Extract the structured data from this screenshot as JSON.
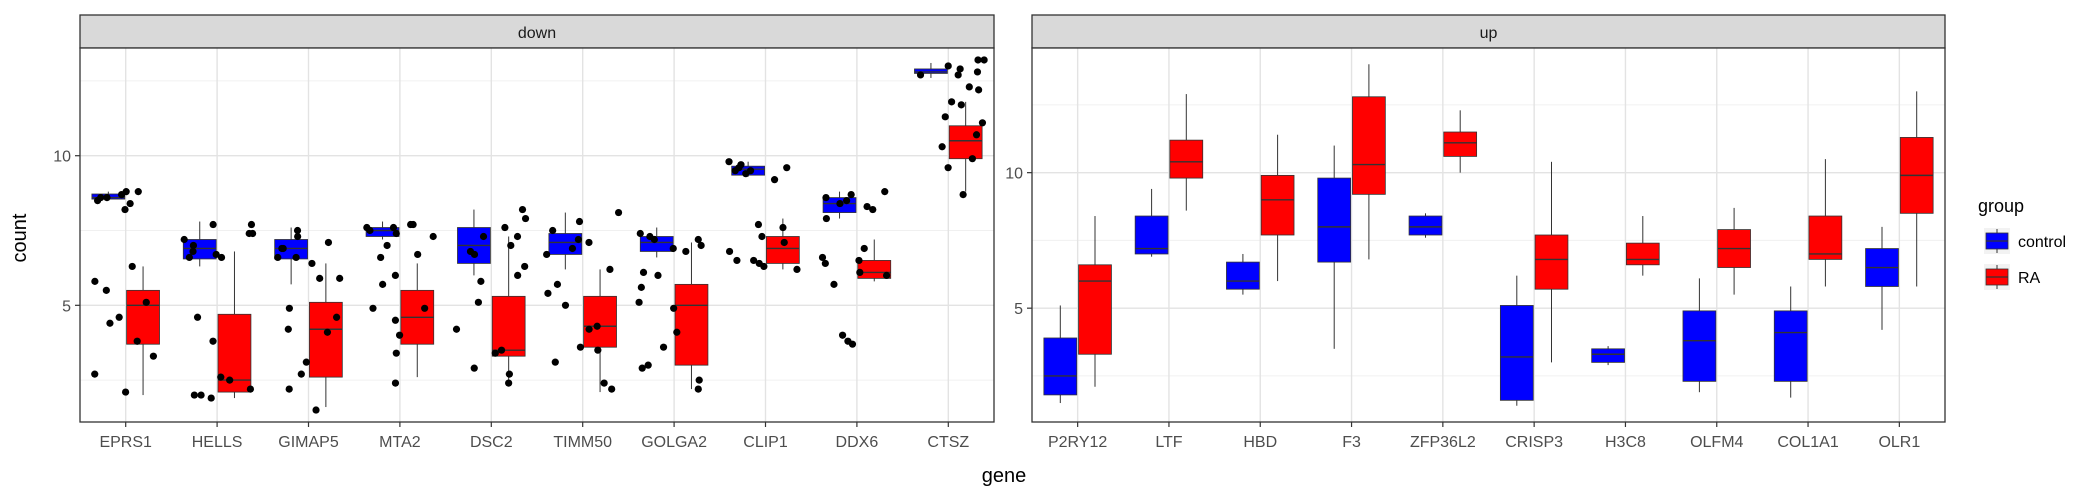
{
  "chart_data": {
    "type": "boxplot",
    "xlabel": "gene",
    "ylabel": "count",
    "legend": {
      "title": "group",
      "position": "right",
      "entries": [
        {
          "name": "control",
          "color": "#0000ff"
        },
        {
          "name": "RA",
          "color": "#ff0000"
        }
      ]
    },
    "grid": true,
    "facets": [
      {
        "title": "down",
        "ylim": [
          1.1,
          13.6
        ],
        "yticks": [
          5,
          10
        ],
        "genes": [
          "EPRS1",
          "HELLS",
          "GIMAP5",
          "MTA2",
          "DSC2",
          "TIMM50",
          "GOLGA2",
          "CLIP1",
          "DDX6",
          "CTSZ"
        ],
        "boxes": [
          {
            "gene": "EPRS1",
            "group": "control",
            "q1": 8.55,
            "median": 8.6,
            "q3": 8.72,
            "whisker_low": 8.5,
            "whisker_high": 8.8
          },
          {
            "gene": "EPRS1",
            "group": "RA",
            "q1": 3.7,
            "median": 5.0,
            "q3": 5.5,
            "whisker_low": 2.0,
            "whisker_high": 6.3
          },
          {
            "gene": "HELLS",
            "group": "control",
            "q1": 6.55,
            "median": 6.9,
            "q3": 7.2,
            "whisker_low": 6.3,
            "whisker_high": 7.8
          },
          {
            "gene": "HELLS",
            "group": "RA",
            "q1": 2.1,
            "median": 2.5,
            "q3": 4.7,
            "whisker_low": 1.9,
            "whisker_high": 6.8
          },
          {
            "gene": "GIMAP5",
            "group": "control",
            "q1": 6.55,
            "median": 6.9,
            "q3": 7.2,
            "whisker_low": 5.7,
            "whisker_high": 7.6
          },
          {
            "gene": "GIMAP5",
            "group": "RA",
            "q1": 2.6,
            "median": 4.2,
            "q3": 5.1,
            "whisker_low": 1.6,
            "whisker_high": 6.4
          },
          {
            "gene": "MTA2",
            "group": "control",
            "q1": 7.3,
            "median": 7.5,
            "q3": 7.6,
            "whisker_low": 7.2,
            "whisker_high": 7.8
          },
          {
            "gene": "MTA2",
            "group": "RA",
            "q1": 3.7,
            "median": 4.6,
            "q3": 5.5,
            "whisker_low": 2.6,
            "whisker_high": 6.4
          },
          {
            "gene": "DSC2",
            "group": "control",
            "q1": 6.4,
            "median": 7.0,
            "q3": 7.6,
            "whisker_low": 6.0,
            "whisker_high": 8.2
          },
          {
            "gene": "DSC2",
            "group": "RA",
            "q1": 3.3,
            "median": 3.5,
            "q3": 5.3,
            "whisker_low": 2.4,
            "whisker_high": 7.3
          },
          {
            "gene": "TIMM50",
            "group": "control",
            "q1": 6.7,
            "median": 7.1,
            "q3": 7.4,
            "whisker_low": 6.2,
            "whisker_high": 8.1
          },
          {
            "gene": "TIMM50",
            "group": "RA",
            "q1": 3.6,
            "median": 4.3,
            "q3": 5.3,
            "whisker_low": 2.1,
            "whisker_high": 6.2
          },
          {
            "gene": "GOLGA2",
            "group": "control",
            "q1": 6.8,
            "median": 7.1,
            "q3": 7.3,
            "whisker_low": 6.6,
            "whisker_high": 7.6
          },
          {
            "gene": "GOLGA2",
            "group": "RA",
            "q1": 3.0,
            "median": 5.0,
            "q3": 5.7,
            "whisker_low": 2.2,
            "whisker_high": 7.1
          },
          {
            "gene": "CLIP1",
            "group": "control",
            "q1": 9.35,
            "median": 9.55,
            "q3": 9.65,
            "whisker_low": 9.3,
            "whisker_high": 9.8
          },
          {
            "gene": "CLIP1",
            "group": "RA",
            "q1": 6.4,
            "median": 6.9,
            "q3": 7.3,
            "whisker_low": 6.2,
            "whisker_high": 7.9
          },
          {
            "gene": "DDX6",
            "group": "control",
            "q1": 8.1,
            "median": 8.4,
            "q3": 8.6,
            "whisker_low": 7.9,
            "whisker_high": 8.8
          },
          {
            "gene": "DDX6",
            "group": "RA",
            "q1": 5.9,
            "median": 6.1,
            "q3": 6.5,
            "whisker_low": 5.8,
            "whisker_high": 7.2
          },
          {
            "gene": "CTSZ",
            "group": "control",
            "q1": 12.75,
            "median": 12.8,
            "q3": 12.9,
            "whisker_low": 12.6,
            "whisker_high": 13.1
          },
          {
            "gene": "CTSZ",
            "group": "RA",
            "q1": 9.9,
            "median": 10.5,
            "q3": 11.0,
            "whisker_low": 8.8,
            "whisker_high": 11.8
          }
        ],
        "points": [
          {
            "gene": "EPRS1",
            "values": [
              8.2,
              8.4,
              8.5,
              8.6,
              8.7,
              8.8,
              5.8,
              3.3,
              6.3,
              4.6,
              4.4,
              5.1,
              3.8,
              2.7,
              2.1,
              5.5,
              8.8,
              8.6
            ]
          },
          {
            "gene": "HELLS",
            "values": [
              6.6,
              6.7,
              7.0,
              7.2,
              7.4,
              7.7,
              6.6,
              3.8,
              2.2,
              2.0,
              1.9,
              2.6,
              2.5,
              2.0,
              6.8,
              7.4,
              7.7,
              4.6
            ]
          },
          {
            "gene": "GIMAP5",
            "values": [
              6.4,
              6.6,
              6.9,
              7.1,
              7.3,
              7.5,
              6.6,
              5.9,
              4.9,
              4.6,
              3.1,
              2.2,
              1.5,
              2.7,
              4.1,
              5.9,
              6.9,
              4.2
            ]
          },
          {
            "gene": "MTA2",
            "values": [
              7.4,
              7.5,
              7.6,
              7.6,
              7.7,
              7.7,
              7.3,
              7.0,
              6.0,
              4.0,
              4.5,
              4.9,
              3.4,
              2.4,
              5.7,
              6.6,
              6.7,
              4.9
            ]
          },
          {
            "gene": "DSC2",
            "values": [
              6.7,
              7.0,
              7.3,
              7.9,
              8.2,
              6.0,
              2.7,
              3.5,
              3.4,
              4.2,
              5.1,
              5.8,
              6.8,
              7.3,
              7.6,
              2.4,
              2.9,
              6.3
            ]
          },
          {
            "gene": "TIMM50",
            "values": [
              6.7,
              6.9,
              7.1,
              7.2,
              7.5,
              8.1,
              7.8,
              6.2,
              4.2,
              3.6,
              3.1,
              2.4,
              2.2,
              5.0,
              5.4,
              5.7,
              3.5,
              4.3
            ]
          },
          {
            "gene": "GOLGA2",
            "values": [
              6.8,
              7.0,
              7.2,
              7.2,
              7.3,
              7.4,
              6.1,
              5.1,
              4.1,
              2.2,
              2.5,
              3.0,
              4.9,
              5.6,
              6.0,
              6.9,
              2.9,
              3.6
            ]
          },
          {
            "gene": "CLIP1",
            "values": [
              9.4,
              9.5,
              9.6,
              9.6,
              9.7,
              9.8,
              9.2,
              9.5,
              7.7,
              6.5,
              6.3,
              6.4,
              6.8,
              7.1,
              7.3,
              7.6,
              6.5,
              6.2
            ]
          },
          {
            "gene": "DDX6",
            "values": [
              8.2,
              8.3,
              8.4,
              8.5,
              8.6,
              8.8,
              7.9,
              6.4,
              5.7,
              4.0,
              6.6,
              6.9,
              3.7,
              3.8,
              6.1,
              6.0,
              6.5,
              8.7
            ]
          },
          {
            "gene": "CTSZ",
            "values": [
              12.7,
              12.8,
              12.9,
              13.0,
              13.2,
              11.7,
              11.3,
              11.1,
              10.7,
              10.3,
              9.6,
              8.7,
              12.3,
              12.2,
              11.8,
              13.2,
              12.7,
              9.9
            ]
          }
        ]
      },
      {
        "title": "up",
        "ylim": [
          0.8,
          14.6
        ],
        "yticks": [
          5,
          10
        ],
        "genes": [
          "P2RY12",
          "LTF",
          "HBD",
          "F3",
          "ZFP36L2",
          "CRISP3",
          "H3C8",
          "OLFM4",
          "COL1A1",
          "OLR1"
        ],
        "boxes": [
          {
            "gene": "P2RY12",
            "group": "control",
            "q1": 1.8,
            "median": 2.5,
            "q3": 3.9,
            "whisker_low": 1.5,
            "whisker_high": 5.1
          },
          {
            "gene": "P2RY12",
            "group": "RA",
            "q1": 3.3,
            "median": 6.0,
            "q3": 6.6,
            "whisker_low": 2.1,
            "whisker_high": 8.4
          },
          {
            "gene": "LTF",
            "group": "control",
            "q1": 7.0,
            "median": 7.2,
            "q3": 8.4,
            "whisker_low": 6.9,
            "whisker_high": 9.4
          },
          {
            "gene": "LTF",
            "group": "RA",
            "q1": 9.8,
            "median": 10.4,
            "q3": 11.2,
            "whisker_low": 8.6,
            "whisker_high": 12.9
          },
          {
            "gene": "HBD",
            "group": "control",
            "q1": 5.7,
            "median": 6.0,
            "q3": 6.7,
            "whisker_low": 5.5,
            "whisker_high": 7.0
          },
          {
            "gene": "HBD",
            "group": "RA",
            "q1": 7.7,
            "median": 9.0,
            "q3": 9.9,
            "whisker_low": 6.0,
            "whisker_high": 11.4
          },
          {
            "gene": "F3",
            "group": "control",
            "q1": 6.7,
            "median": 8.0,
            "q3": 9.8,
            "whisker_low": 3.5,
            "whisker_high": 11.0
          },
          {
            "gene": "F3",
            "group": "RA",
            "q1": 9.2,
            "median": 10.3,
            "q3": 12.8,
            "whisker_low": 6.8,
            "whisker_high": 14.0
          },
          {
            "gene": "ZFP36L2",
            "group": "control",
            "q1": 7.7,
            "median": 8.0,
            "q3": 8.4,
            "whisker_low": 7.6,
            "whisker_high": 8.5
          },
          {
            "gene": "ZFP36L2",
            "group": "RA",
            "q1": 10.6,
            "median": 11.1,
            "q3": 11.5,
            "whisker_low": 10.0,
            "whisker_high": 12.3
          },
          {
            "gene": "CRISP3",
            "group": "control",
            "q1": 1.6,
            "median": 3.2,
            "q3": 5.1,
            "whisker_low": 1.4,
            "whisker_high": 6.2
          },
          {
            "gene": "CRISP3",
            "group": "RA",
            "q1": 5.7,
            "median": 6.8,
            "q3": 7.7,
            "whisker_low": 3.0,
            "whisker_high": 10.4
          },
          {
            "gene": "H3C8",
            "group": "control",
            "q1": 3.0,
            "median": 3.3,
            "q3": 3.5,
            "whisker_low": 2.9,
            "whisker_high": 3.6
          },
          {
            "gene": "H3C8",
            "group": "RA",
            "q1": 6.6,
            "median": 6.8,
            "q3": 7.4,
            "whisker_low": 6.2,
            "whisker_high": 8.4
          },
          {
            "gene": "OLFM4",
            "group": "control",
            "q1": 2.3,
            "median": 3.8,
            "q3": 4.9,
            "whisker_low": 1.9,
            "whisker_high": 6.1
          },
          {
            "gene": "OLFM4",
            "group": "RA",
            "q1": 6.5,
            "median": 7.2,
            "q3": 7.9,
            "whisker_low": 5.5,
            "whisker_high": 8.7
          },
          {
            "gene": "COL1A1",
            "group": "control",
            "q1": 2.3,
            "median": 4.1,
            "q3": 4.9,
            "whisker_low": 1.7,
            "whisker_high": 5.8
          },
          {
            "gene": "COL1A1",
            "group": "RA",
            "q1": 6.8,
            "median": 7.0,
            "q3": 8.4,
            "whisker_low": 5.8,
            "whisker_high": 10.5
          },
          {
            "gene": "OLR1",
            "group": "control",
            "q1": 5.8,
            "median": 6.5,
            "q3": 7.2,
            "whisker_low": 4.2,
            "whisker_high": 8.0
          },
          {
            "gene": "OLR1",
            "group": "RA",
            "q1": 8.5,
            "median": 9.9,
            "q3": 11.3,
            "whisker_low": 5.8,
            "whisker_high": 13.0
          }
        ]
      }
    ]
  }
}
